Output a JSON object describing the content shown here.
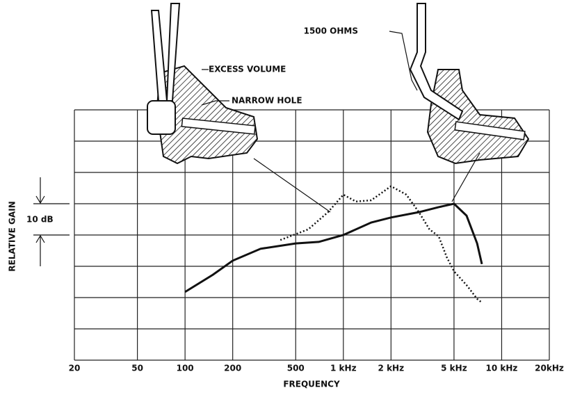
{
  "chart_data": {
    "type": "line",
    "x_label": "FREQUENCY",
    "y_label": "RELATIVE GAIN",
    "annotations": [
      "EXCESS VOLUME",
      "NARROW HOLE",
      "1500 OHMS",
      "10 dB"
    ],
    "xscale": "log",
    "xlim": [
      20,
      20000
    ],
    "xticks": [
      20,
      50,
      100,
      200,
      500,
      {
        "value": 1000,
        "label": "1 kHz"
      },
      {
        "value": 2000,
        "label": "2 kHz"
      },
      {
        "value": 5000,
        "label": "5 kHz"
      },
      {
        "value": 10000,
        "label": "10 kHz"
      },
      {
        "value": 20000,
        "label": "20kHz"
      }
    ],
    "ylim": [
      0,
      80
    ],
    "yticks": [
      0,
      10,
      20,
      30,
      40,
      50,
      60,
      70,
      80
    ],
    "grid": true,
    "series": [
      {
        "color": "#111111",
        "style": "solid",
        "x": [
          100,
          150,
          200,
          300,
          500,
          700,
          1000,
          1500,
          2000,
          3000,
          4000,
          5000,
          6000,
          7000,
          7500
        ],
        "values": [
          21.8,
          27.3,
          31.8,
          35.6,
          37.3,
          37.8,
          40,
          44,
          45.6,
          47.3,
          48.9,
          50,
          46.2,
          37.3,
          30.7
        ]
      },
      {
        "color": "#111111",
        "style": "dotted",
        "x": [
          400,
          600,
          800,
          1000,
          1200,
          1500,
          2000,
          2500,
          3000,
          3500,
          4000,
          4500,
          5000,
          6000,
          7000,
          7500
        ],
        "values": [
          38.4,
          41.8,
          47.3,
          52.9,
          50.7,
          51.1,
          55.6,
          52.9,
          47.3,
          41.8,
          39.6,
          32.9,
          28.4,
          24,
          19.6,
          18.4
        ]
      }
    ]
  }
}
